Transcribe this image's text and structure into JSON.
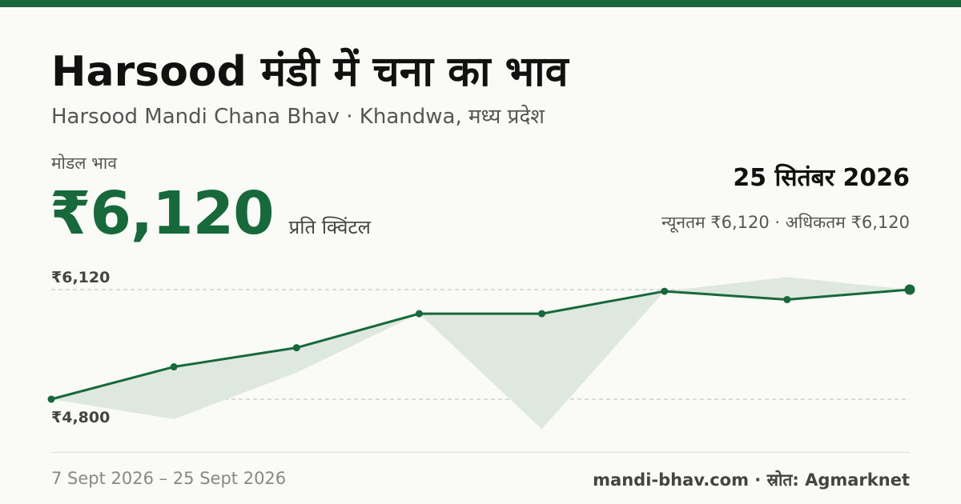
{
  "header": {
    "title": "Harsood मंडी में चना का भाव",
    "subtitle": "Harsood Mandi Chana Bhav · Khandwa, मध्य प्रदेश"
  },
  "price": {
    "label": "मोडल भाव",
    "value": "₹6,120",
    "unit": "प्रति क्विंटल"
  },
  "summary": {
    "date": "25 सितंबर 2026",
    "range": "न्यूनतम ₹6,120 · अधिकतम ₹6,120"
  },
  "footer": {
    "date_range": "7 Sept 2026 – 25 Sept 2026",
    "source": "mandi-bhav.com · स्रोत: Agmarknet"
  },
  "colors": {
    "accent": "#17683a",
    "band": "#dfe8df",
    "guide": "#bbbbbb"
  },
  "chart_data": {
    "type": "line",
    "y_reference_labels": [
      "₹6,120",
      "₹4,800"
    ],
    "ylim": [
      4800,
      6120
    ],
    "series": [
      {
        "values": [
          4800,
          5190,
          5420,
          5830,
          5830,
          6100,
          6000,
          6120
        ]
      }
    ],
    "band": {
      "upper": [
        4800,
        5190,
        5420,
        5830,
        5830,
        6100,
        6270,
        6120
      ],
      "lower": [
        4800,
        4560,
        5120,
        5830,
        4440,
        6100,
        6000,
        6120
      ]
    },
    "grid": false,
    "legend": "none"
  }
}
